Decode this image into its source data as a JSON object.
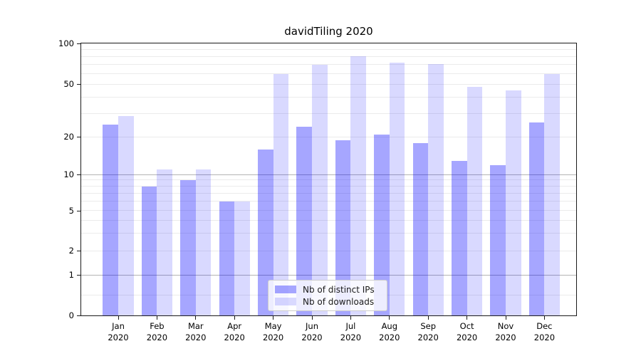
{
  "title": "davidTiling 2020",
  "chart_data": {
    "type": "bar",
    "title": "davidTiling 2020",
    "categories": [
      "Jan 2020",
      "Feb 2020",
      "Mar 2020",
      "Apr 2020",
      "May 2020",
      "Jun 2020",
      "Jul 2020",
      "Aug 2020",
      "Sep 2020",
      "Oct 2020",
      "Nov 2020",
      "Dec 2020"
    ],
    "x_tick_months": [
      "Jan",
      "Feb",
      "Mar",
      "Apr",
      "May",
      "Jun",
      "Jul",
      "Aug",
      "Sep",
      "Oct",
      "Nov",
      "Dec"
    ],
    "x_tick_year": "2020",
    "series": [
      {
        "name": "Nb of distinct IPs",
        "color": "rgba(0,0,255,0.35)",
        "color_hex": "#a6a6ff",
        "values": [
          25,
          8,
          9,
          6,
          16,
          24,
          19,
          21,
          18,
          13,
          12,
          26
        ]
      },
      {
        "name": "Nb of downloads",
        "color": "rgba(0,0,255,0.15)",
        "color_hex": "#d9d9ff",
        "values": [
          29,
          11,
          11,
          6,
          60,
          70,
          81,
          72,
          71,
          48,
          45,
          60
        ]
      }
    ],
    "y_axis": {
      "scale": "log-like",
      "ticks": [
        0,
        1,
        2,
        5,
        10,
        20,
        50,
        100
      ],
      "range": [
        0,
        100
      ]
    },
    "x_axis": {
      "label": ""
    },
    "grid": "horizontal, major dark at 1/10/100, light minors",
    "legend_position": "bottom-center inside plot"
  },
  "colors": {
    "bar_ips": "rgba(0,0,255,0.35)",
    "bar_downloads": "rgba(0,0,255,0.15)",
    "grid_major": "#b3b3b3",
    "grid_minor": "#ebebeb",
    "spine": "#1a1a1a"
  }
}
